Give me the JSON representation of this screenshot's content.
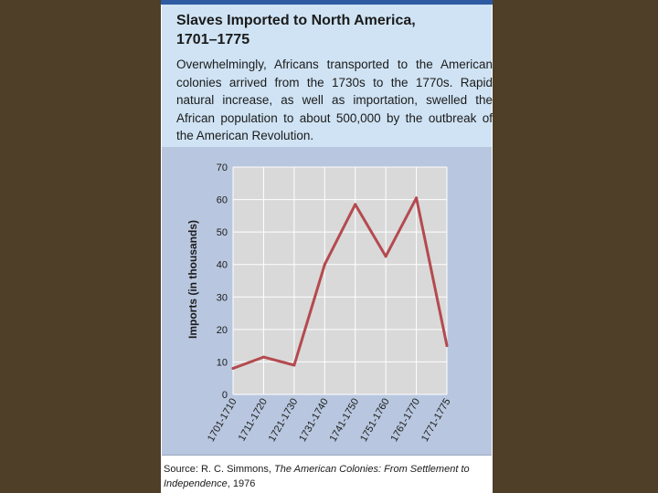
{
  "header": {
    "title": "Slaves Imported to North America,\n1701–1775",
    "description": "Overwhelmingly, Africans transported to the American colonies arrived from the 1730s to the 1770s. Rapid natural increase, as well as importation, swelled the African population to about 500,000 by the outbreak of the American Revolution."
  },
  "source": {
    "prefix": "Source: R. C. Simmons, ",
    "title": "The American Colonies: From Settlement to Independence",
    "suffix": ", 1976"
  },
  "colors": {
    "page_background": "#4f3e28",
    "header_band": "#cfe3f4",
    "plot_panel": "#b8c7df",
    "plot_area": "#d9d9d9",
    "line": "#b44a4f",
    "accent_rule": "#2d5aa0"
  },
  "chart_data": {
    "type": "line",
    "title": "",
    "xlabel": "",
    "ylabel": "Imports (in thousands)",
    "categories": [
      "1701-1710",
      "1711-1720",
      "1721-1730",
      "1731-1740",
      "1741-1750",
      "1751-1760",
      "1761-1770",
      "1771-1775"
    ],
    "values": [
      8,
      11.5,
      9,
      40,
      58.5,
      42.5,
      60.5,
      15
    ],
    "ylim": [
      0,
      70
    ],
    "yticks": [
      0,
      10,
      20,
      30,
      40,
      50,
      60,
      70
    ],
    "grid": true,
    "legend": "none"
  }
}
